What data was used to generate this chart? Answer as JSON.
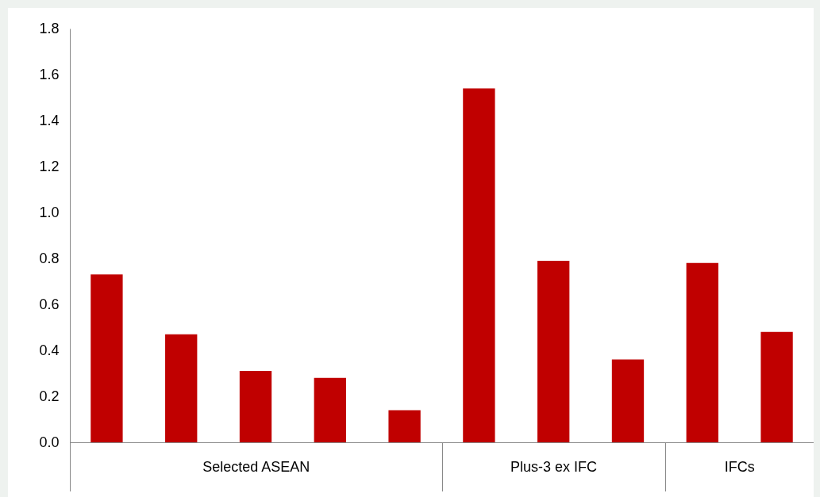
{
  "chart_data": {
    "type": "bar",
    "categories": [
      null,
      null,
      null,
      null,
      null,
      null,
      null,
      null,
      null,
      null
    ],
    "values": [
      0.73,
      0.47,
      0.31,
      0.28,
      0.14,
      1.54,
      0.79,
      0.36,
      0.78,
      0.48
    ],
    "color": "#c00000",
    "ylim": [
      0,
      1.8
    ],
    "yticks": [
      {
        "value": 0,
        "label": "0.0"
      },
      0.2,
      0.4,
      0.6,
      0.8,
      {
        "value": 1,
        "label": "1.0"
      },
      1.2,
      1.4,
      1.6,
      1.8
    ],
    "grid": false,
    "annotations": [
      "Selected ASEAN",
      "Plus-3 ex IFC",
      "IFCs"
    ]
  }
}
